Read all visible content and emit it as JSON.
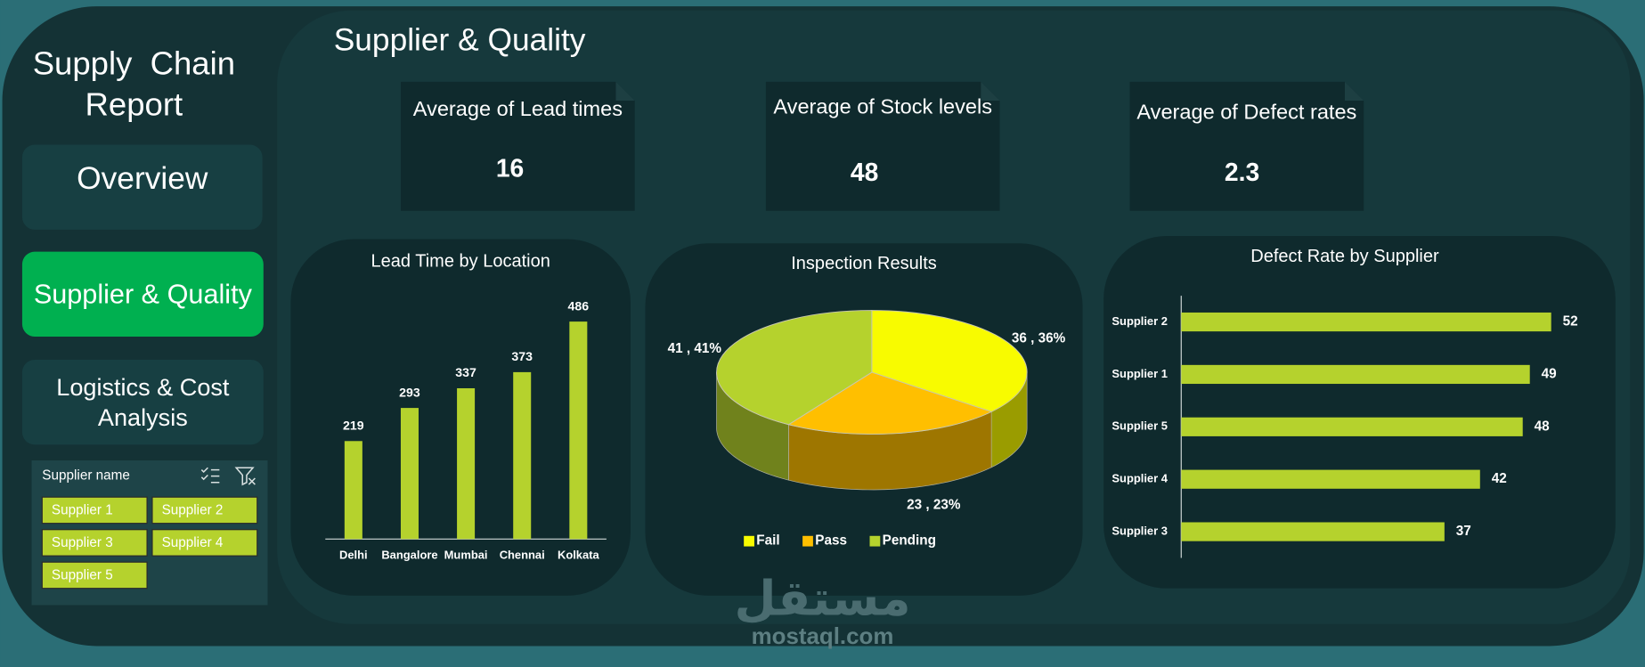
{
  "sidebar": {
    "title": "Supply  Chain Report",
    "nav": [
      "Overview",
      "Supplier & Quality",
      "Logistics & Cost Analysis"
    ],
    "slicer": {
      "title": "Supplier name",
      "items": [
        "Supplier 1",
        "Supplier 2",
        "Supplier 3",
        "Supplier 4",
        "Supplier 5"
      ]
    }
  },
  "header": {
    "title": "Supplier & Quality"
  },
  "kpis": [
    {
      "label": "Average of Lead times",
      "value": 16
    },
    {
      "label": "Average of Stock levels",
      "value": 48
    },
    {
      "label": "Average of Defect rates",
      "value": 2.3
    }
  ],
  "chart_data": [
    {
      "type": "bar",
      "title": "Lead Time by Location",
      "categories": [
        "Delhi",
        "Bangalore",
        "Mumbai",
        "Chennai",
        "Kolkata"
      ],
      "values": [
        219,
        293,
        337,
        373,
        486
      ],
      "color": "#b5d22d",
      "ylim": [
        0,
        525
      ]
    },
    {
      "type": "pie",
      "title": "Inspection Results",
      "categories": [
        "Fail",
        "Pass",
        "Pending"
      ],
      "values": [
        36,
        23,
        41
      ],
      "value_labels": [
        "36 , 36%",
        "23 , 23%",
        "41 , 41%"
      ],
      "colors": [
        "#f8fb00",
        "#ffbf00",
        "#b5d22d"
      ],
      "legend": "bottom"
    },
    {
      "type": "bar",
      "orientation": "horizontal",
      "title": "Defect Rate by Supplier",
      "categories": [
        "Supplier 2",
        "Supplier 1",
        "Supplier 5",
        "Supplier 4",
        "Supplier 3"
      ],
      "values": [
        52,
        49,
        48,
        42,
        37
      ],
      "color": "#b5d22d",
      "xlim": [
        0,
        60
      ]
    }
  ],
  "watermark": {
    "arabic": "مستقل",
    "latin": "mostaql.com"
  }
}
